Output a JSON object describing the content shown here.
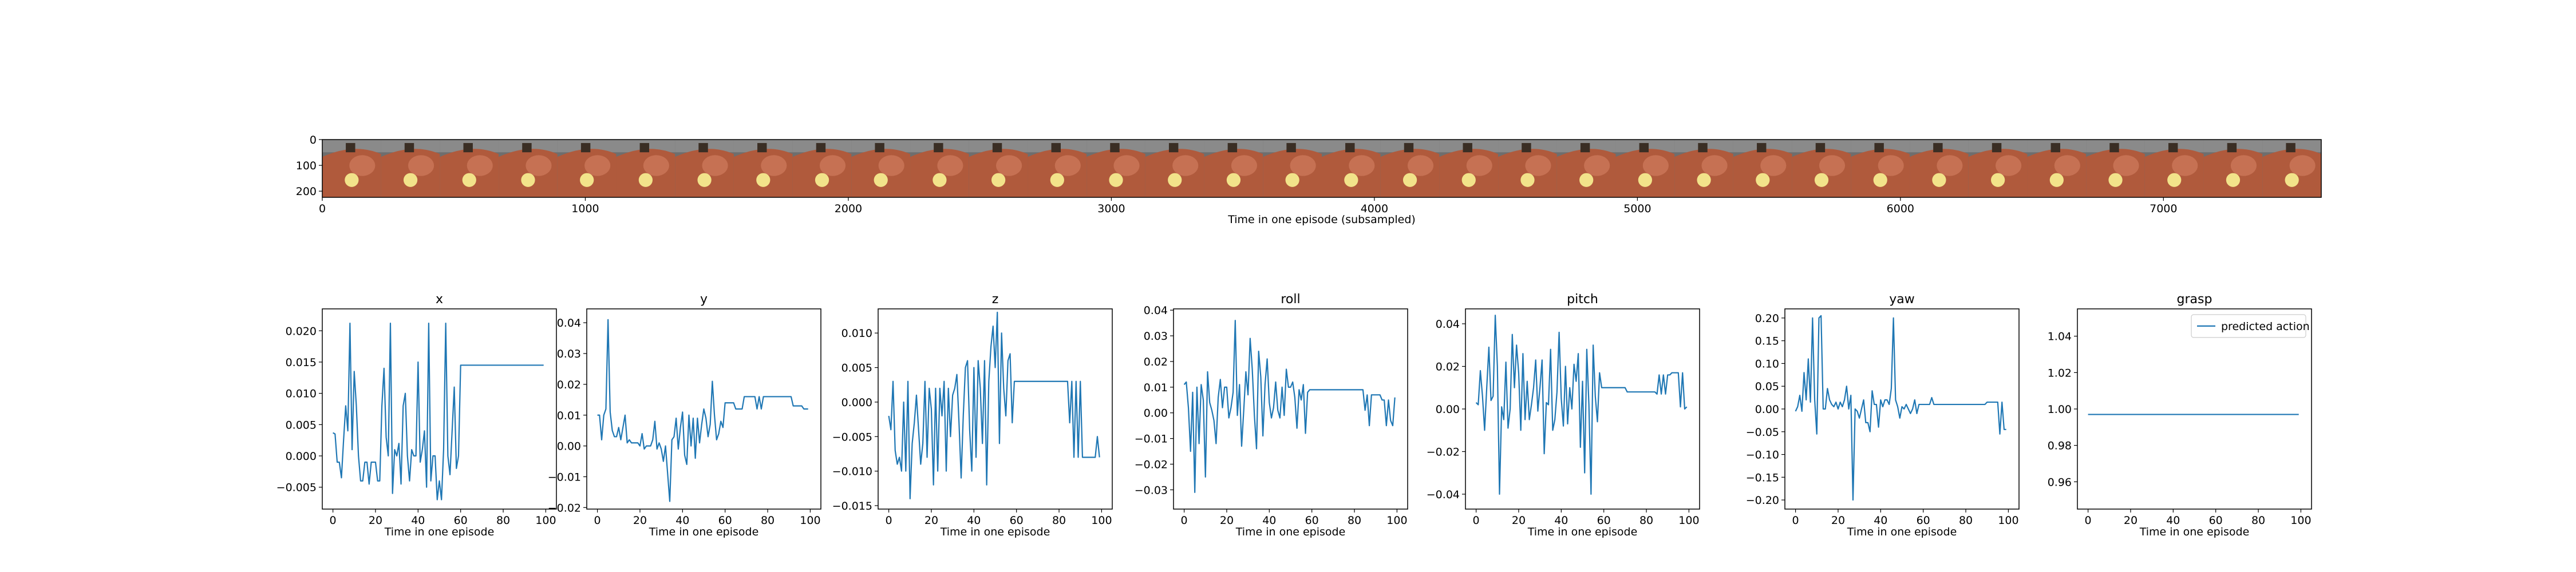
{
  "colors": {
    "line": "#1f77b4",
    "frame_bg": "#6e6e6e",
    "frame_top": "#8a8a8a",
    "arm": "#b05a3c",
    "arm_light": "#d98566",
    "ball": "#f2e38a",
    "gripper": "#3a2e24"
  },
  "strip": {
    "xlabel": "Time in one episode (subsampled)",
    "xticks": [
      0,
      1000,
      2000,
      3000,
      4000,
      5000,
      6000,
      7000
    ],
    "yticks": [
      0,
      100,
      200
    ],
    "xlim": [
      0,
      7600
    ],
    "ylim": [
      224,
      0
    ],
    "frame_count": 34
  },
  "chart_data": [
    {
      "type": "line",
      "title": "x",
      "xlabel": "Time in one episode",
      "ylabel": "",
      "xlim": [
        -5,
        105
      ],
      "ylim": [
        -0.0085,
        0.0235
      ],
      "xticks": [
        0,
        20,
        40,
        60,
        80,
        100
      ],
      "yticks": [
        -0.005,
        0.0,
        0.005,
        0.01,
        0.015,
        0.02
      ],
      "ytick_labels": [
        "−0.005",
        "0.000",
        "0.005",
        "0.010",
        "0.015",
        "0.020"
      ],
      "series": [
        {
          "values": [
            0.0037,
            0.0035,
            -0.001,
            -0.001,
            -0.0035,
            0.0025,
            0.008,
            0.004,
            0.0212,
            0.001,
            0.0135,
            0.008,
            0.0,
            -0.004,
            -0.004,
            -0.001,
            -0.001,
            -0.0045,
            -0.001,
            -0.001,
            -0.001,
            -0.004,
            -0.004,
            0.008,
            0.014,
            0.003,
            0.0,
            0.0212,
            -0.006,
            0.001,
            0.0,
            0.002,
            -0.0045,
            0.008,
            0.01,
            0.0,
            -0.004,
            0.001,
            0.0,
            0.0,
            0.015,
            -0.001,
            0.001,
            0.004,
            -0.005,
            0.0212,
            -0.004,
            0.0,
            0.0,
            -0.007,
            -0.004,
            -0.007,
            0.001,
            0.0212,
            0.0,
            -0.003,
            0.004,
            0.011,
            -0.002,
            0.0,
            0.0145,
            0.0145,
            0.0145,
            0.0145,
            0.0145,
            0.0145,
            0.0145,
            0.0145,
            0.0145,
            0.0145,
            0.0145,
            0.0145,
            0.0145,
            0.0145,
            0.0145,
            0.0145,
            0.0145,
            0.0145,
            0.0145,
            0.0145,
            0.0145,
            0.0145,
            0.0145,
            0.0145,
            0.0145,
            0.0145,
            0.0145,
            0.0145,
            0.0145,
            0.0145,
            0.0145,
            0.0145,
            0.0145,
            0.0145,
            0.0145,
            0.0145,
            0.0145,
            0.0145,
            0.0145,
            0.0145
          ]
        }
      ]
    },
    {
      "type": "line",
      "title": "y",
      "xlabel": "Time in one episode",
      "ylabel": "",
      "xlim": [
        -5,
        105
      ],
      "ylim": [
        -0.0205,
        0.0445
      ],
      "xticks": [
        0,
        20,
        40,
        60,
        80,
        100
      ],
      "yticks": [
        -0.02,
        -0.01,
        0.0,
        0.01,
        0.02,
        0.03,
        0.04
      ],
      "ytick_labels": [
        "−0.02",
        "−0.01",
        "0.00",
        "0.01",
        "0.02",
        "0.03",
        "0.04"
      ],
      "series": [
        {
          "values": [
            0.01,
            0.01,
            0.002,
            0.01,
            0.012,
            0.041,
            0.011,
            0.005,
            0.003,
            0.003,
            0.006,
            0.002,
            0.006,
            0.01,
            0.001,
            0.002,
            0.001,
            0.001,
            0.001,
            0.001,
            0.0,
            0.004,
            -0.001,
            0.0,
            0.0,
            0.0,
            0.002,
            0.008,
            -0.001,
            0.001,
            -0.001,
            -0.005,
            0.0,
            -0.009,
            -0.018,
            0.002,
            0.003,
            0.009,
            -0.001,
            0.006,
            0.011,
            -0.003,
            -0.006,
            0.01,
            0.0,
            0.009,
            -0.004,
            0.009,
            0.001,
            0.007,
            0.012,
            0.009,
            0.003,
            0.007,
            0.021,
            0.01,
            0.002,
            0.004,
            0.008,
            0.006,
            0.014,
            0.014,
            0.014,
            0.014,
            0.014,
            0.012,
            0.012,
            0.012,
            0.012,
            0.016,
            0.016,
            0.016,
            0.016,
            0.016,
            0.016,
            0.012,
            0.016,
            0.012,
            0.016,
            0.016,
            0.016,
            0.016,
            0.016,
            0.016,
            0.016,
            0.016,
            0.016,
            0.016,
            0.016,
            0.016,
            0.016,
            0.016,
            0.013,
            0.013,
            0.013,
            0.013,
            0.013,
            0.012,
            0.012,
            0.012
          ]
        }
      ]
    },
    {
      "type": "line",
      "title": "z",
      "xlabel": "Time in one episode",
      "ylabel": "",
      "xlim": [
        -5,
        105
      ],
      "ylim": [
        -0.0155,
        0.0135
      ],
      "xticks": [
        0,
        20,
        40,
        60,
        80,
        100
      ],
      "yticks": [
        -0.015,
        -0.01,
        -0.005,
        0.0,
        0.005,
        0.01
      ],
      "ytick_labels": [
        "−0.015",
        "−0.010",
        "−0.005",
        "0.000",
        "0.005",
        "0.010"
      ],
      "series": [
        {
          "values": [
            -0.002,
            -0.004,
            0.003,
            -0.007,
            -0.009,
            -0.008,
            -0.01,
            0.0,
            -0.01,
            0.003,
            -0.014,
            -0.006,
            -0.003,
            0.001,
            -0.004,
            -0.009,
            -0.006,
            0.003,
            -0.008,
            0.002,
            -0.001,
            -0.012,
            0.002,
            -0.01,
            0.002,
            -0.002,
            0.003,
            -0.01,
            0.002,
            -0.005,
            0.001,
            0.002,
            0.004,
            -0.003,
            -0.011,
            -0.002,
            0.005,
            0.006,
            -0.004,
            -0.01,
            0.005,
            -0.008,
            0.006,
            0.002,
            -0.006,
            0.006,
            -0.012,
            0.003,
            0.008,
            0.011,
            0.005,
            0.013,
            -0.006,
            0.01,
            0.002,
            -0.002,
            0.006,
            0.007,
            -0.003,
            0.003,
            0.003,
            0.003,
            0.003,
            0.003,
            0.003,
            0.003,
            0.003,
            0.003,
            0.003,
            0.003,
            0.003,
            0.003,
            0.003,
            0.003,
            0.003,
            0.003,
            0.003,
            0.003,
            0.003,
            0.003,
            0.003,
            0.003,
            0.003,
            0.003,
            0.003,
            -0.003,
            0.003,
            -0.008,
            0.003,
            -0.008,
            0.003,
            -0.008,
            -0.008,
            -0.008,
            -0.008,
            -0.008,
            -0.008,
            -0.008,
            -0.005,
            -0.008
          ]
        }
      ]
    },
    {
      "type": "line",
      "title": "roll",
      "xlabel": "Time in one episode",
      "ylabel": "",
      "xlim": [
        -5,
        105
      ],
      "ylim": [
        -0.0375,
        0.0405
      ],
      "xticks": [
        0,
        20,
        40,
        60,
        80,
        100
      ],
      "yticks": [
        -0.03,
        -0.02,
        -0.01,
        0.0,
        0.01,
        0.02,
        0.03,
        0.04
      ],
      "ytick_labels": [
        "−0.03",
        "−0.02",
        "−0.01",
        "0.00",
        "0.01",
        "0.02",
        "0.03",
        "0.04"
      ],
      "series": [
        {
          "values": [
            0.011,
            0.012,
            0.002,
            -0.015,
            0.008,
            -0.031,
            0.01,
            -0.012,
            0.011,
            0.005,
            -0.025,
            0.016,
            0.004,
            0.001,
            -0.003,
            -0.012,
            0.006,
            0.013,
            0.002,
            0.01,
            0.01,
            -0.002,
            0.002,
            0.008,
            0.036,
            -0.001,
            0.011,
            -0.013,
            0.001,
            0.016,
            0.007,
            0.029,
            0.017,
            -0.001,
            -0.014,
            0.024,
            0.014,
            -0.009,
            0.011,
            0.021,
            0.004,
            -0.002,
            0.002,
            0.012,
            0.001,
            -0.002,
            0.01,
            -0.001,
            0.017,
            0.01,
            0.01,
            0.012,
            0.006,
            -0.006,
            0.009,
            0.005,
            0.011,
            -0.008,
            0.008,
            0.009,
            0.009,
            0.009,
            0.009,
            0.009,
            0.009,
            0.009,
            0.009,
            0.009,
            0.009,
            0.009,
            0.009,
            0.009,
            0.009,
            0.009,
            0.009,
            0.009,
            0.009,
            0.009,
            0.009,
            0.009,
            0.009,
            0.009,
            0.009,
            0.009,
            0.009,
            0.001,
            0.007,
            -0.005,
            0.007,
            0.007,
            0.007,
            0.007,
            0.007,
            0.005,
            0.005,
            -0.005,
            0.005,
            -0.003,
            -0.005,
            0.006
          ]
        }
      ]
    },
    {
      "type": "line",
      "title": "pitch",
      "xlabel": "Time in one episode",
      "ylabel": "",
      "xlim": [
        -5,
        105
      ],
      "ylim": [
        -0.047,
        0.047
      ],
      "xticks": [
        0,
        20,
        40,
        60,
        80,
        100
      ],
      "yticks": [
        -0.04,
        -0.02,
        0.0,
        0.02,
        0.04
      ],
      "ytick_labels": [
        "−0.04",
        "−0.02",
        "0.00",
        "0.02",
        "0.04"
      ],
      "series": [
        {
          "values": [
            0.003,
            0.002,
            0.018,
            0.006,
            -0.01,
            0.01,
            0.029,
            0.004,
            0.006,
            0.044,
            0.02,
            -0.04,
            0.001,
            -0.005,
            0.022,
            -0.009,
            0.0,
            0.035,
            0.01,
            0.03,
            0.017,
            -0.01,
            0.026,
            -0.005,
            0.013,
            -0.005,
            0.002,
            0.01,
            0.023,
            -0.001,
            0.01,
            0.023,
            -0.021,
            0.003,
            0.002,
            0.028,
            -0.01,
            -0.005,
            0.008,
            0.036,
            0.005,
            -0.008,
            0.02,
            -0.007,
            0.01,
            0.0,
            0.021,
            0.013,
            0.026,
            -0.018,
            0.013,
            -0.03,
            0.028,
            0.002,
            -0.04,
            0.03,
            0.006,
            -0.006,
            0.017,
            0.01,
            0.01,
            0.01,
            0.01,
            0.01,
            0.01,
            0.01,
            0.01,
            0.01,
            0.01,
            0.01,
            0.01,
            0.008,
            0.008,
            0.008,
            0.008,
            0.008,
            0.008,
            0.008,
            0.008,
            0.008,
            0.008,
            0.008,
            0.008,
            0.008,
            0.008,
            0.007,
            0.016,
            0.007,
            0.016,
            0.007,
            0.016,
            0.016,
            0.017,
            0.017,
            0.017,
            0.017,
            0.001,
            0.017,
            0.0,
            0.001
          ]
        }
      ]
    },
    {
      "type": "line",
      "title": "yaw",
      "xlabel": "Time in one episode",
      "ylabel": "",
      "xlim": [
        -5,
        105
      ],
      "ylim": [
        -0.22,
        0.22
      ],
      "xticks": [
        0,
        20,
        40,
        60,
        80,
        100
      ],
      "yticks": [
        -0.2,
        -0.15,
        -0.1,
        -0.05,
        0.0,
        0.05,
        0.1,
        0.15,
        0.2
      ],
      "ytick_labels": [
        "−0.20",
        "−0.15",
        "−0.10",
        "−0.05",
        "0.00",
        "0.05",
        "0.10",
        "0.15",
        "0.20"
      ],
      "series": [
        {
          "values": [
            -0.005,
            0.005,
            0.03,
            -0.005,
            0.08,
            0.02,
            0.11,
            0.015,
            0.2,
            0.02,
            -0.055,
            0.2,
            0.205,
            0.0,
            0.0,
            0.045,
            0.02,
            0.01,
            0.005,
            0.015,
            0.0,
            0.015,
            0.005,
            0.02,
            0.05,
            0.0,
            0.03,
            -0.2,
            0.0,
            -0.005,
            -0.02,
            0.0,
            0.02,
            -0.03,
            -0.03,
            -0.05,
            0.04,
            0.01,
            0.01,
            -0.04,
            0.02,
            0.005,
            0.02,
            0.02,
            0.01,
            0.045,
            0.2,
            0.02,
            0.005,
            -0.02,
            0.005,
            0.0,
            0.01,
            0.0,
            -0.01,
            0.0,
            0.02,
            -0.01,
            0.01,
            0.01,
            0.01,
            0.01,
            0.01,
            0.01,
            0.025,
            0.01,
            0.01,
            0.01,
            0.01,
            0.01,
            0.01,
            0.01,
            0.01,
            0.01,
            0.01,
            0.01,
            0.01,
            0.01,
            0.01,
            0.01,
            0.01,
            0.01,
            0.01,
            0.01,
            0.01,
            0.01,
            0.01,
            0.01,
            0.01,
            0.01,
            0.015,
            0.015,
            0.015,
            0.015,
            0.015,
            0.015,
            -0.055,
            0.015,
            -0.045,
            -0.045
          ]
        }
      ]
    },
    {
      "type": "line",
      "title": "grasp",
      "xlabel": "Time in one episode",
      "ylabel": "",
      "xlim": [
        -5,
        105
      ],
      "ylim": [
        0.945,
        1.055
      ],
      "xticks": [
        0,
        20,
        40,
        60,
        80,
        100
      ],
      "yticks": [
        0.96,
        0.98,
        1.0,
        1.02,
        1.04
      ],
      "ytick_labels": [
        "0.96",
        "0.98",
        "1.00",
        "1.02",
        "1.04"
      ],
      "legend": {
        "entries": [
          "predicted action"
        ],
        "placement": "top-right"
      },
      "series": [
        {
          "name": "predicted action",
          "values": [
            0.997,
            0.997,
            0.997,
            0.997,
            0.997,
            0.997,
            0.997,
            0.997,
            0.997,
            0.997,
            0.997,
            0.997,
            0.997,
            0.997,
            0.997,
            0.997,
            0.997,
            0.997,
            0.997,
            0.997,
            0.997,
            0.997,
            0.997,
            0.997,
            0.997,
            0.997,
            0.997,
            0.997,
            0.997,
            0.997,
            0.997,
            0.997,
            0.997,
            0.997,
            0.997,
            0.997,
            0.997,
            0.997,
            0.997,
            0.997,
            0.997,
            0.997,
            0.997,
            0.997,
            0.997,
            0.997,
            0.997,
            0.997,
            0.997,
            0.997,
            0.997,
            0.997,
            0.997,
            0.997,
            0.997,
            0.997,
            0.997,
            0.997,
            0.997,
            0.997,
            0.997,
            0.997,
            0.997,
            0.997,
            0.997,
            0.997,
            0.997,
            0.997,
            0.997,
            0.997,
            0.997,
            0.997,
            0.997,
            0.997,
            0.997,
            0.997,
            0.997,
            0.997,
            0.997,
            0.997,
            0.997,
            0.997,
            0.997,
            0.997,
            0.997,
            0.997,
            0.997,
            0.997,
            0.997,
            0.997,
            0.997,
            0.997,
            0.997,
            0.997,
            0.997,
            0.997,
            0.997,
            0.997,
            0.997,
            0.997
          ]
        }
      ]
    }
  ]
}
